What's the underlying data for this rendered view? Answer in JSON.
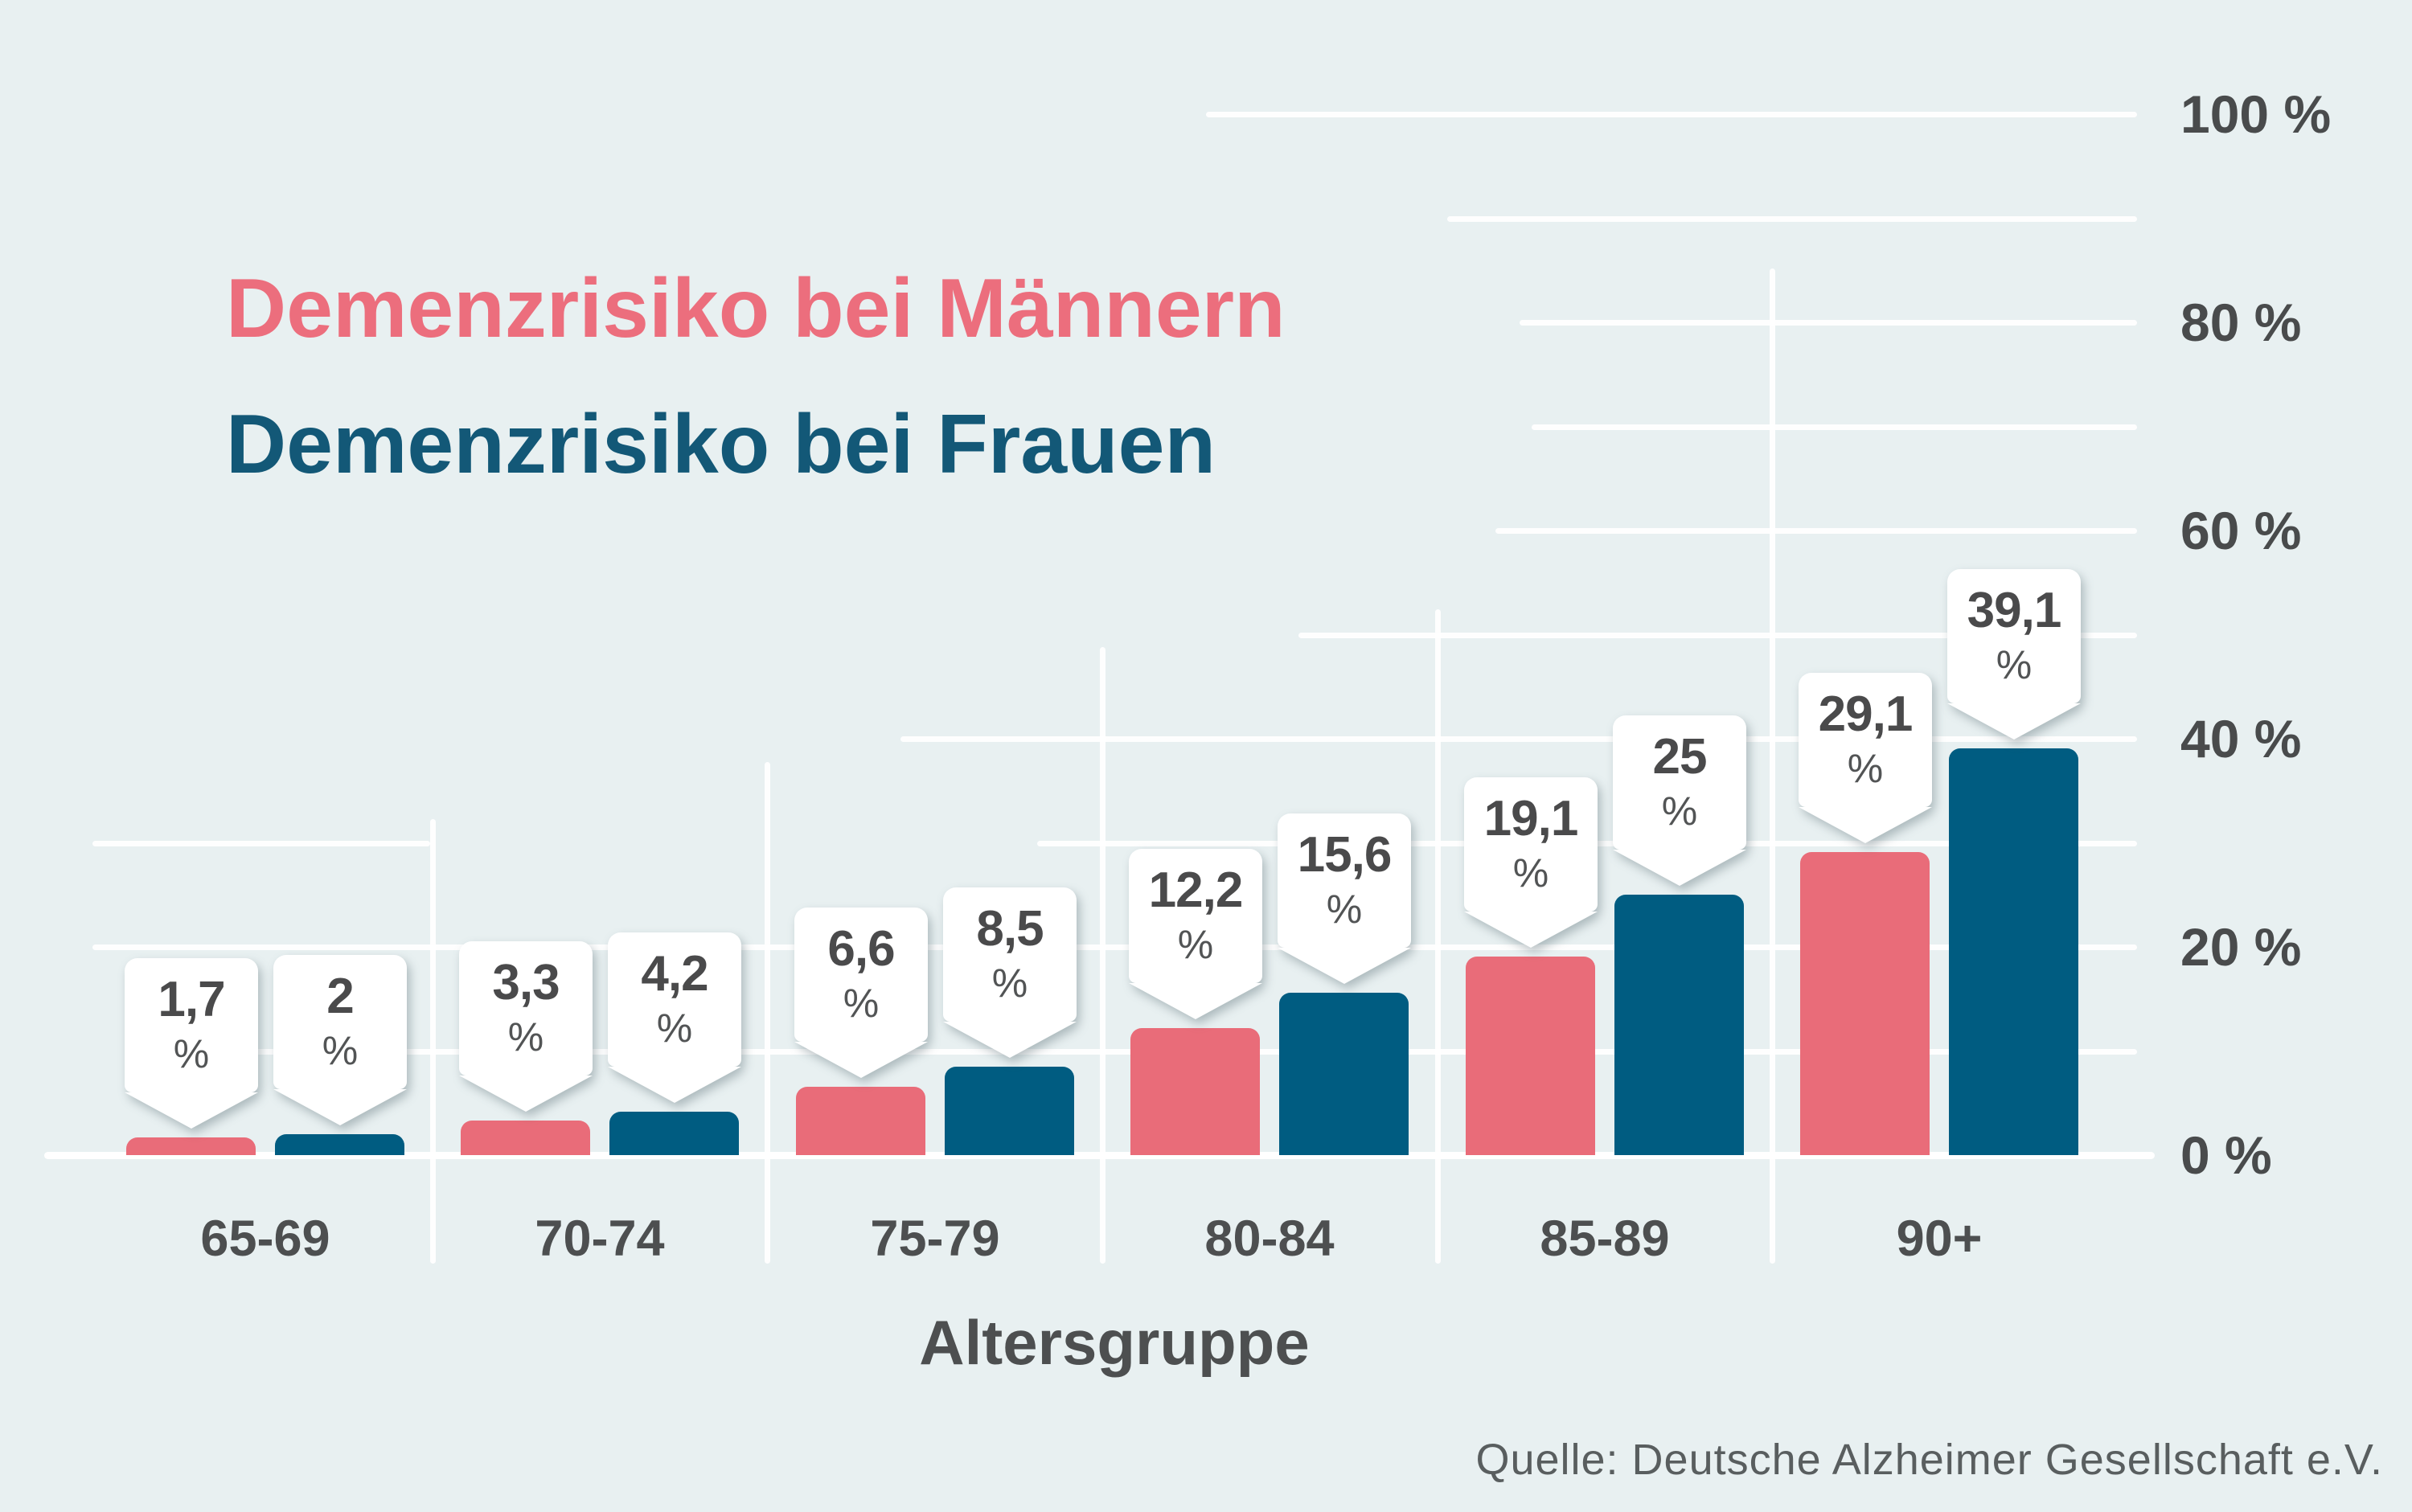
{
  "legend": {
    "men": "Demenzrisiko bei Männern",
    "women": "Demenzrisiko bei Frauen"
  },
  "axis": {
    "x_title": "Altersgruppe",
    "y_tick_labels": [
      "0 %",
      "20 %",
      "40 %",
      "60 %",
      "80 %",
      "100 %"
    ]
  },
  "source": "Quelle: Deutsche Alzheimer Gesellschaft e.V.",
  "unit": "%",
  "colors": {
    "background": "#E8F0F1",
    "men_bar": "#E96C79",
    "women_bar": "#005C81",
    "men_legend_text": "#EC6E7D",
    "women_legend_text": "#135877",
    "gridline": "#FFFFFF",
    "text_gray": "#4A4A4B"
  },
  "chart_data": {
    "type": "bar",
    "title": "",
    "categories": [
      "65-69",
      "70-74",
      "75-79",
      "80-84",
      "85-89",
      "90+"
    ],
    "xlabel": "Altersgruppe",
    "ylabel": "",
    "ylim": [
      0,
      100
    ],
    "ytick_step": 20,
    "grid": true,
    "legend_position": "top-left",
    "series": [
      {
        "name": "Demenzrisiko bei Männern",
        "color": "#E96C79",
        "values": [
          1.7,
          3.3,
          6.6,
          12.2,
          19.1,
          29.1
        ],
        "labels": [
          "1,7",
          "3,3",
          "6,6",
          "12,2",
          "19,1",
          "29,1"
        ]
      },
      {
        "name": "Demenzrisiko bei Frauen",
        "color": "#005C81",
        "values": [
          2,
          4.2,
          8.5,
          15.6,
          25,
          39.1
        ],
        "labels": [
          "2",
          "4,2",
          "8,5",
          "15,6",
          "25",
          "39,1"
        ]
      }
    ]
  }
}
